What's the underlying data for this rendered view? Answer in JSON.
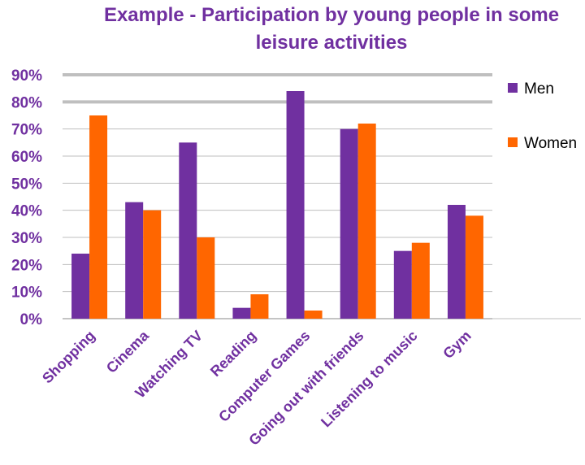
{
  "colors": {
    "title": "#7030A0",
    "men": "#7030A0",
    "women": "#FF6600",
    "gridline": "#bfbfbf"
  },
  "chart_data": {
    "type": "bar",
    "title_lines": [
      "Example - Participation by young people in some",
      "leisure activities"
    ],
    "categories": [
      "Shopping",
      "Cinema",
      "Watching TV",
      "Reading",
      "Computer Games",
      "Going out with friends",
      "Listening to music",
      "Gym"
    ],
    "series": [
      {
        "name": "Men",
        "color": "#7030A0",
        "values": [
          24,
          43,
          65,
          4,
          84,
          70,
          25,
          42
        ]
      },
      {
        "name": "Women",
        "color": "#FF6600",
        "values": [
          75,
          40,
          30,
          9,
          3,
          72,
          28,
          38
        ]
      }
    ],
    "ylim": [
      0,
      90
    ],
    "yticks": [
      "0%",
      "10%",
      "20%",
      "30%",
      "40%",
      "50%",
      "60%",
      "70%",
      "80%",
      "90%"
    ],
    "xlabel": "",
    "ylabel": "",
    "grid": true,
    "legend_position": "right"
  }
}
